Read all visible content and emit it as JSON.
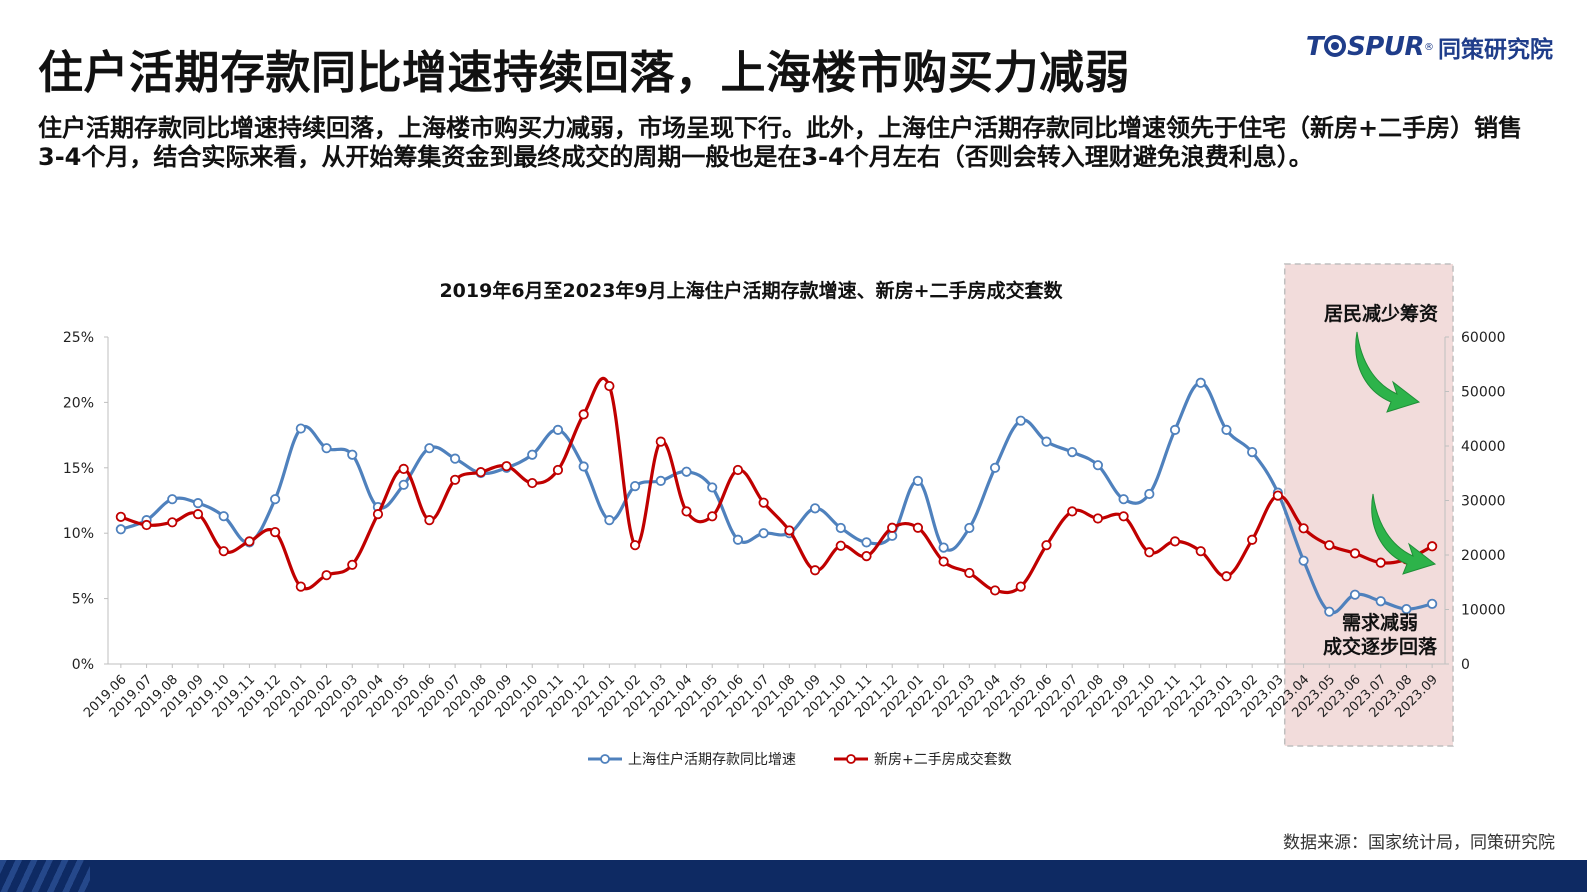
{
  "header": {
    "title": "住户活期存款同比增速持续回落，上海楼市购买力减弱",
    "logo_en_pre": "T",
    "logo_en_post": "SPUR",
    "logo_reg": "®",
    "logo_cn": "同策研究院",
    "subtitle": "住户活期存款同比增速持续回落，上海楼市购买力减弱，市场呈现下行。此外，上海住户活期存款同比增速领先于住宅（新房+二手房）销售3-4个月，结合实际来看，从开始筹集资金到最终成交的周期一般也是在3-4个月左右（否则会转入理财避免浪费利息）。"
  },
  "footer": {
    "source": "数据来源：国家统计局，同策研究院"
  },
  "callouts": {
    "top": "居民减少筹资",
    "bottom_line1": "需求减弱",
    "bottom_line2": "成交逐步回落"
  },
  "colors": {
    "deposit": "#4f81bd",
    "sales": "#c00000",
    "highlight_fill": "#f2dcdb",
    "highlight_border": "#bfbfbf",
    "arrow": "#2db34a",
    "brand": "#1f3d8a"
  },
  "icons": {
    "arrow_top": "curved-arrow-down-right-icon",
    "arrow_bottom": "curved-arrow-down-right-icon"
  },
  "chart_data": {
    "type": "line",
    "title": "2019年6月至2023年9月上海住户活期存款增速、新房+二手房成交套数",
    "grid": false,
    "legend_position": "bottom",
    "highlight_range": [
      "2023.04",
      "2023.09"
    ],
    "y_left": {
      "ticks": [
        "0%",
        "5%",
        "10%",
        "15%",
        "20%",
        "25%"
      ],
      "range": [
        0,
        25
      ],
      "unit": "%"
    },
    "y_right": {
      "ticks": [
        "0",
        "10000",
        "20000",
        "30000",
        "40000",
        "50000",
        "60000"
      ],
      "range": [
        0,
        60000
      ]
    },
    "categories": [
      "2019.06",
      "2019.07",
      "2019.08",
      "2019.09",
      "2019.10",
      "2019.11",
      "2019.12",
      "2020.01",
      "2020.02",
      "2020.03",
      "2020.04",
      "2020.05",
      "2020.06",
      "2020.07",
      "2020.08",
      "2020.09",
      "2020.10",
      "2020.11",
      "2020.12",
      "2021.01",
      "2021.02",
      "2021.03",
      "2021.04",
      "2021.05",
      "2021.06",
      "2021.07",
      "2021.08",
      "2021.09",
      "2021.10",
      "2021.11",
      "2021.12",
      "2022.01",
      "2022.02",
      "2022.03",
      "2022.04",
      "2022.05",
      "2022.06",
      "2022.07",
      "2022.08",
      "2022.09",
      "2022.10",
      "2022.11",
      "2022.12",
      "2023.01",
      "2023.02",
      "2023.03",
      "2023.04",
      "2023.05",
      "2023.06",
      "2023.07",
      "2023.08",
      "2023.09"
    ],
    "series": [
      {
        "name": "上海住户活期存款同比增速",
        "axis": "left",
        "values": [
          10.3,
          11.0,
          12.6,
          12.3,
          11.3,
          9.3,
          12.6,
          18.0,
          16.5,
          16.0,
          12.0,
          13.7,
          16.5,
          15.7,
          14.6,
          15.0,
          16.0,
          17.9,
          15.1,
          11.0,
          13.6,
          14.0,
          14.7,
          13.5,
          9.5,
          10.0,
          10.0,
          11.9,
          10.4,
          9.3,
          9.8,
          14.0,
          8.9,
          10.4,
          15.0,
          18.6,
          17.0,
          16.2,
          15.2,
          12.6,
          13.0,
          17.9,
          21.5,
          17.9,
          16.2,
          13.1,
          7.9,
          4.0,
          5.3,
          4.8,
          4.2,
          4.6
        ]
      },
      {
        "name": "新房+二手房成交套数",
        "axis": "right",
        "values": [
          27000,
          25500,
          26000,
          27500,
          20700,
          22500,
          24200,
          14200,
          16300,
          18200,
          27500,
          35800,
          26400,
          33800,
          35200,
          36300,
          33200,
          35600,
          45800,
          51000,
          21800,
          40800,
          28000,
          27100,
          35600,
          29600,
          24500,
          17200,
          21700,
          19800,
          25000,
          25000,
          18800,
          16700,
          13500,
          14200,
          21800,
          28000,
          26700,
          27100,
          20500,
          22500,
          20700,
          16100,
          22800,
          30900,
          24900,
          21800,
          20300,
          18600,
          19200,
          21600
        ]
      }
    ]
  }
}
